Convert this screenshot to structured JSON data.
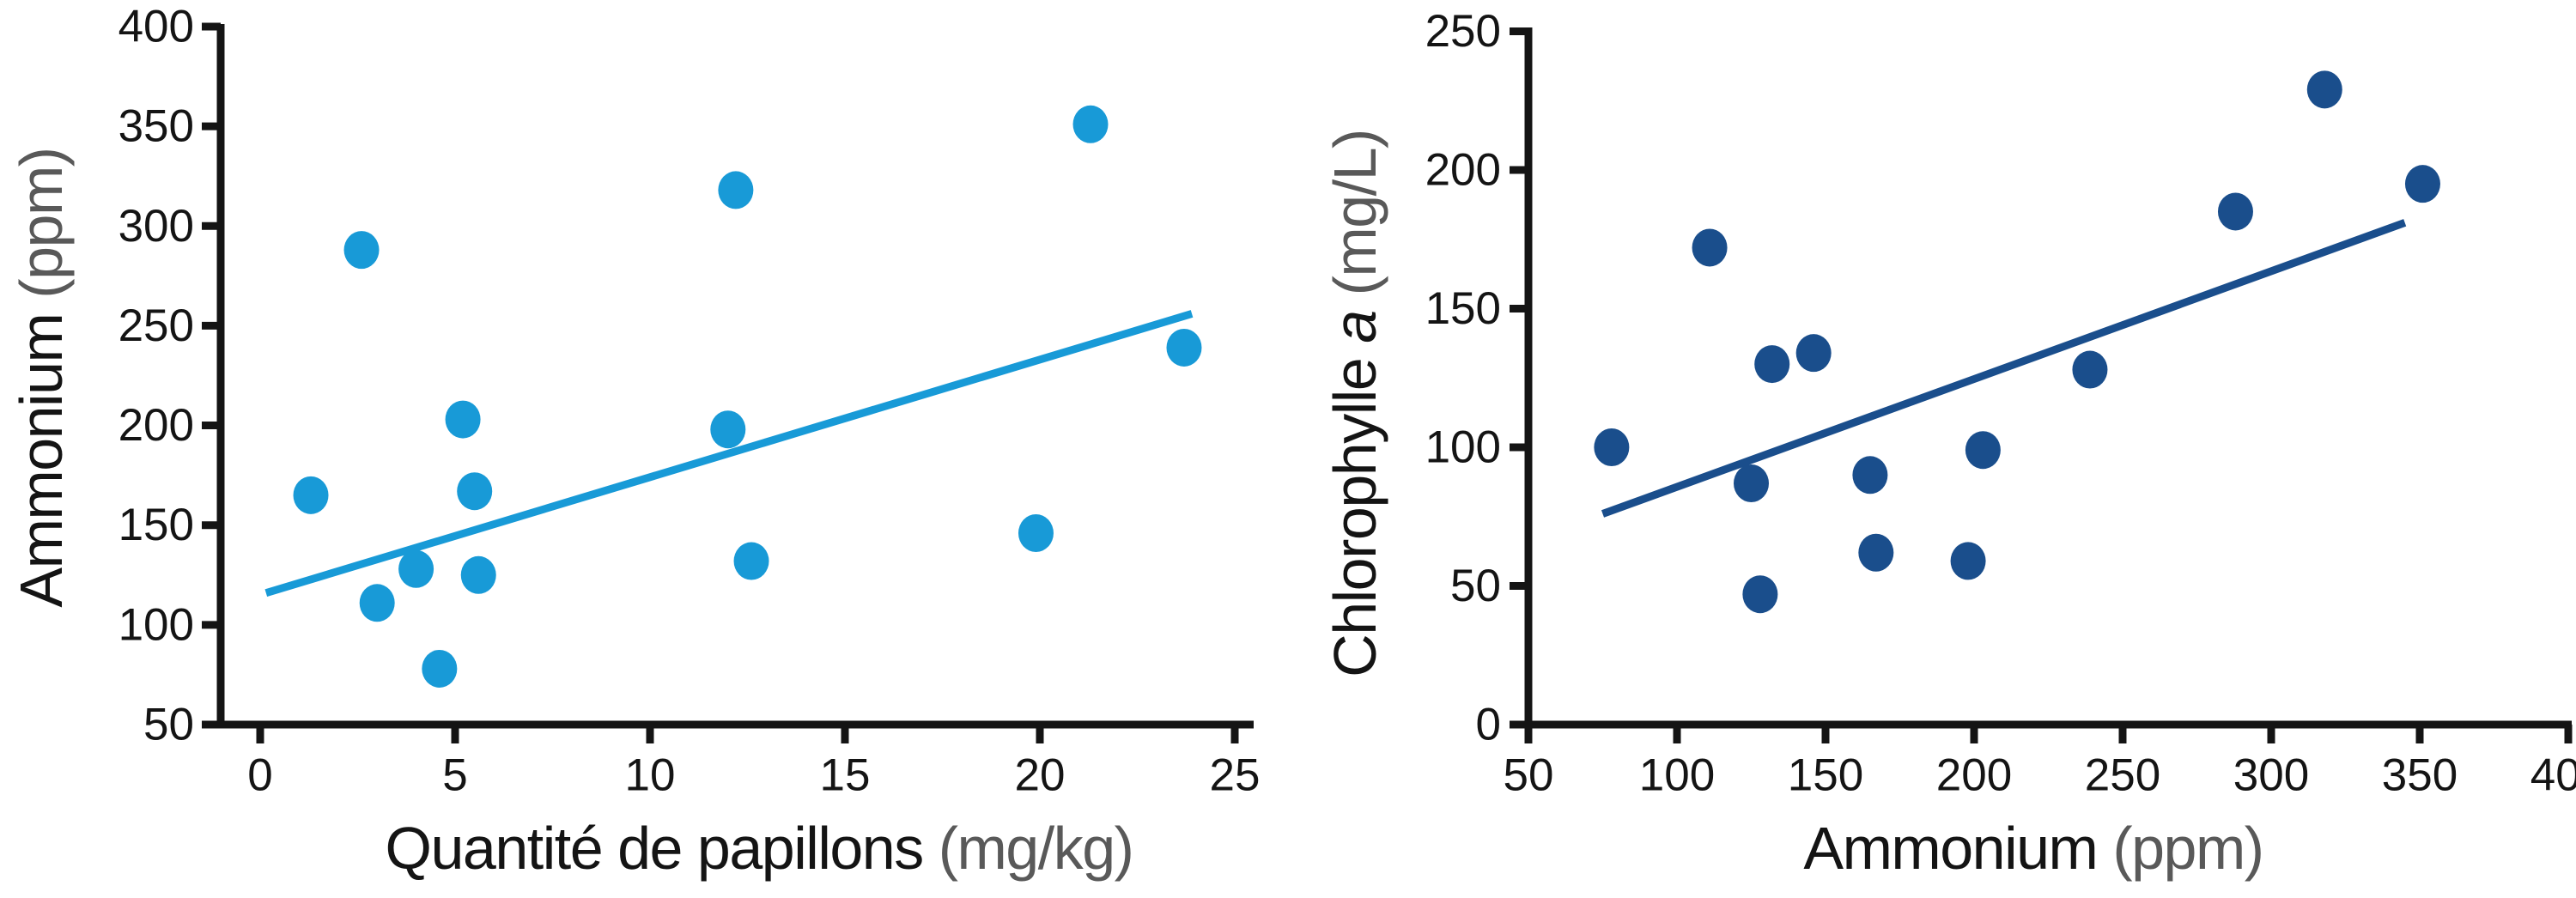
{
  "figure": {
    "background": "#ffffff",
    "axis_color": "#141414",
    "tick_label_color": "#141414",
    "unit_label_color": "#595959"
  },
  "chart_data": [
    {
      "type": "scatter",
      "title": "",
      "xlabel": "Quantité de papillons",
      "xlabel_unit": "(mg/kg)",
      "ylabel": "Ammonium",
      "ylabel_unit": "(ppm)",
      "xlim": [
        0,
        25
      ],
      "ylim": [
        50,
        400
      ],
      "x_ticks": [
        0,
        5,
        10,
        15,
        20,
        25
      ],
      "y_ticks": [
        50,
        100,
        150,
        200,
        250,
        300,
        350,
        400
      ],
      "grid": false,
      "legend": "none",
      "marker_color": "#189AD7",
      "trend_color": "#189AD7",
      "points": [
        [
          1.3,
          165
        ],
        [
          2.6,
          288
        ],
        [
          3.0,
          111
        ],
        [
          4.0,
          128
        ],
        [
          4.6,
          78
        ],
        [
          5.2,
          203
        ],
        [
          5.5,
          167
        ],
        [
          5.6,
          125
        ],
        [
          12.0,
          198
        ],
        [
          12.2,
          318
        ],
        [
          12.6,
          132
        ],
        [
          19.9,
          146
        ],
        [
          21.3,
          351
        ],
        [
          23.7,
          239
        ]
      ],
      "trend": {
        "x1": 0.15,
        "y1": 116,
        "x2": 23.9,
        "y2": 256
      }
    },
    {
      "type": "scatter",
      "title": "",
      "xlabel": "Ammonium",
      "xlabel_unit": "(ppm)",
      "ylabel_pre": "Chlorophylle",
      "ylabel_italic": "a",
      "ylabel_unit": "(mg/L)",
      "xlim": [
        50,
        400
      ],
      "ylim": [
        0,
        250
      ],
      "x_ticks": [
        50,
        100,
        150,
        200,
        250,
        300,
        350,
        400
      ],
      "y_ticks": [
        0,
        50,
        100,
        150,
        200,
        250
      ],
      "grid": false,
      "legend": "none",
      "marker_color": "#1A4E8C",
      "trend_color": "#1A4E8C",
      "points": [
        [
          78,
          100
        ],
        [
          111,
          172
        ],
        [
          125,
          87
        ],
        [
          128,
          47
        ],
        [
          132,
          130
        ],
        [
          146,
          134
        ],
        [
          165,
          90
        ],
        [
          167,
          62
        ],
        [
          198,
          59
        ],
        [
          203,
          99
        ],
        [
          239,
          128
        ],
        [
          288,
          185
        ],
        [
          318,
          229
        ],
        [
          351,
          195
        ]
      ],
      "trend": {
        "x1": 75,
        "y1": 76,
        "x2": 345,
        "y2": 181
      }
    }
  ]
}
